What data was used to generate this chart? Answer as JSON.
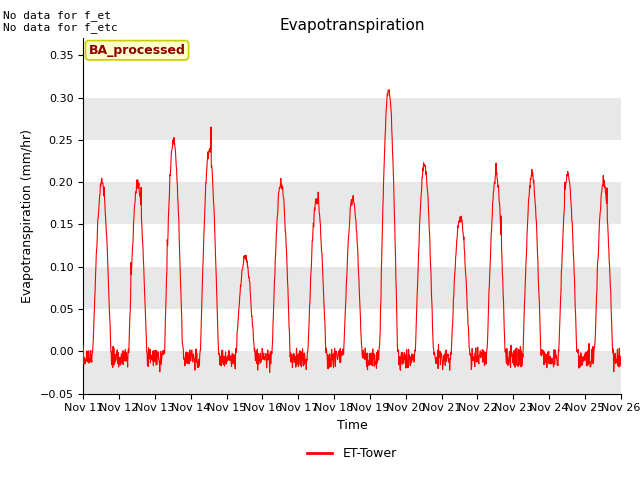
{
  "title": "Evapotranspiration",
  "ylabel": "Evapotranspiration (mm/hr)",
  "xlabel": "Time",
  "ylim": [
    -0.05,
    0.37
  ],
  "yticks": [
    -0.05,
    0.0,
    0.05,
    0.1,
    0.15,
    0.2,
    0.25,
    0.3,
    0.35
  ],
  "line_color": "#ff0000",
  "line_width": 0.8,
  "fig_bg_color": "#ffffff",
  "plot_bg_color": "#ffffff",
  "band_color": "#e8e8e8",
  "annotation_top_left": "No data for f_et\nNo data for f_etc",
  "annotation_fontsize": 8,
  "legend_label": "ET-Tower",
  "legend_box_label": "BA_processed",
  "legend_box_facecolor": "#ffffcc",
  "legend_box_edgecolor": "#cccc00",
  "legend_box_text_color": "#8b0000",
  "title_fontsize": 11,
  "axis_fontsize": 9,
  "tick_fontsize": 8,
  "days": 15,
  "x_labels": [
    "Nov 11",
    "Nov 12",
    "Nov 13",
    "Nov 14",
    "Nov 15",
    "Nov 16",
    "Nov 17",
    "Nov 18",
    "Nov 19",
    "Nov 20",
    "Nov 21",
    "Nov 22",
    "Nov 23",
    "Nov 24",
    "Nov 25",
    "Nov 26"
  ],
  "day_peaks": [
    0.2,
    0.2,
    0.25,
    0.24,
    0.11,
    0.2,
    0.18,
    0.18,
    0.31,
    0.22,
    0.16,
    0.21,
    0.21,
    0.21,
    0.2
  ],
  "pts_per_day": 96,
  "noise_std": 0.003,
  "night_neg_max": 0.018,
  "clip_min": -0.035,
  "clip_max": 0.35
}
